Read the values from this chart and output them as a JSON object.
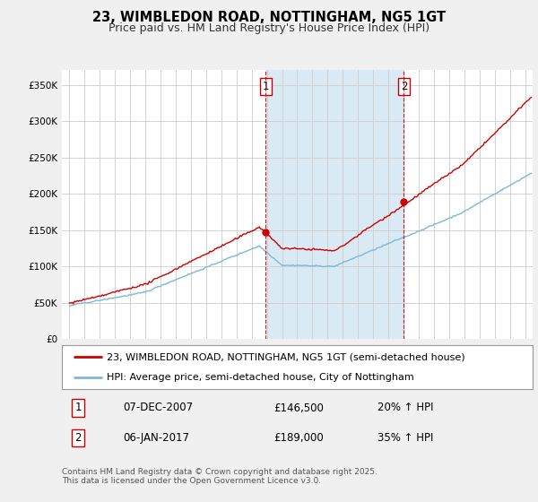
{
  "title": "23, WIMBLEDON ROAD, NOTTINGHAM, NG5 1GT",
  "subtitle": "Price paid vs. HM Land Registry's House Price Index (HPI)",
  "legend_line1": "23, WIMBLEDON ROAD, NOTTINGHAM, NG5 1GT (semi-detached house)",
  "legend_line2": "HPI: Average price, semi-detached house, City of Nottingham",
  "sale1_label": "1",
  "sale1_date": "07-DEC-2007",
  "sale1_price": "£146,500",
  "sale1_hpi": "20% ↑ HPI",
  "sale2_label": "2",
  "sale2_date": "06-JAN-2017",
  "sale2_price": "£189,000",
  "sale2_hpi": "35% ↑ HPI",
  "sale1_x": 2007.92,
  "sale1_y": 146500,
  "sale2_x": 2017.02,
  "sale2_y": 189000,
  "vline1_x": 2007.92,
  "vline2_x": 2017.02,
  "hpi_color": "#7eb8d4",
  "price_color": "#cc0000",
  "vline_color": "#cc0000",
  "shade_color": "#daeaf4",
  "background_color": "#f0f0f0",
  "plot_bg_color": "#ffffff",
  "ylim": [
    0,
    370000
  ],
  "xlim_start": 1994.5,
  "xlim_end": 2025.5,
  "yticks": [
    0,
    50000,
    100000,
    150000,
    200000,
    250000,
    300000,
    350000
  ],
  "ytick_labels": [
    "£0",
    "£50K",
    "£100K",
    "£150K",
    "£200K",
    "£250K",
    "£300K",
    "£350K"
  ],
  "footnote": "Contains HM Land Registry data © Crown copyright and database right 2025.\nThis data is licensed under the Open Government Licence v3.0.",
  "title_fontsize": 10.5,
  "subtitle_fontsize": 9,
  "tick_fontsize": 7.5,
  "legend_fontsize": 8,
  "footnote_fontsize": 6.5
}
